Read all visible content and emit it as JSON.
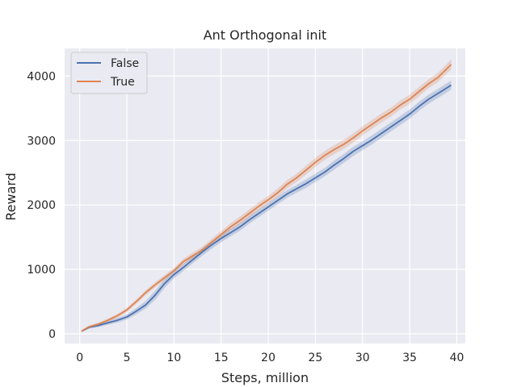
{
  "chart_data": {
    "type": "line",
    "title": "Ant Orthogonal init",
    "xlabel": "Steps, million",
    "ylabel": "Reward",
    "xlim": [
      -1.6,
      40.9
    ],
    "ylim": [
      -150,
      4430
    ],
    "xticks": [
      0,
      5,
      10,
      15,
      20,
      25,
      30,
      35,
      40
    ],
    "yticks": [
      0,
      1000,
      2000,
      3000,
      4000
    ],
    "grid": true,
    "legend_position": "top-left",
    "series": [
      {
        "name": "False",
        "color": "#4c72b0",
        "x": [
          0.2,
          1,
          2,
          3,
          4,
          5,
          6,
          7,
          8,
          9,
          10,
          11,
          12,
          13,
          14,
          15,
          16,
          17,
          18,
          19,
          20,
          21,
          22,
          23,
          24,
          25,
          26,
          27,
          28,
          29,
          30,
          31,
          32,
          33,
          34,
          35,
          36,
          37,
          38,
          39.4
        ],
        "y": [
          40,
          100,
          130,
          170,
          210,
          260,
          350,
          450,
          600,
          780,
          920,
          1030,
          1150,
          1270,
          1380,
          1480,
          1570,
          1660,
          1770,
          1870,
          1970,
          2070,
          2170,
          2250,
          2330,
          2420,
          2510,
          2620,
          2720,
          2830,
          2920,
          3010,
          3110,
          3210,
          3310,
          3410,
          3530,
          3640,
          3730,
          3860
        ],
        "band": [
          15,
          20,
          25,
          30,
          35,
          40,
          50,
          60,
          70,
          70,
          60,
          55,
          55,
          60,
          60,
          60,
          60,
          60,
          60,
          60,
          60,
          60,
          60,
          60,
          65,
          65,
          65,
          70,
          70,
          70,
          70,
          70,
          70,
          70,
          70,
          70,
          70,
          70,
          70,
          70
        ]
      },
      {
        "name": "True",
        "color": "#dd8452",
        "x": [
          0.2,
          1,
          2,
          3,
          4,
          5,
          6,
          7,
          8,
          9,
          10,
          11,
          12,
          13,
          14,
          15,
          16,
          17,
          18,
          19,
          20,
          21,
          22,
          23,
          24,
          25,
          26,
          27,
          28,
          29,
          30,
          31,
          32,
          33,
          34,
          35,
          36,
          37,
          38,
          39.4
        ],
        "y": [
          40,
          110,
          150,
          210,
          280,
          370,
          500,
          640,
          760,
          870,
          980,
          1120,
          1210,
          1300,
          1420,
          1540,
          1660,
          1760,
          1870,
          1980,
          2080,
          2190,
          2320,
          2420,
          2540,
          2660,
          2770,
          2860,
          2940,
          3040,
          3150,
          3250,
          3350,
          3440,
          3550,
          3640,
          3760,
          3880,
          3980,
          4180
        ],
        "band": [
          15,
          20,
          25,
          30,
          30,
          35,
          35,
          40,
          40,
          40,
          40,
          45,
          50,
          50,
          55,
          55,
          55,
          60,
          60,
          60,
          60,
          65,
          65,
          65,
          70,
          70,
          70,
          70,
          70,
          70,
          70,
          70,
          70,
          70,
          70,
          70,
          70,
          70,
          70,
          80
        ]
      }
    ]
  }
}
